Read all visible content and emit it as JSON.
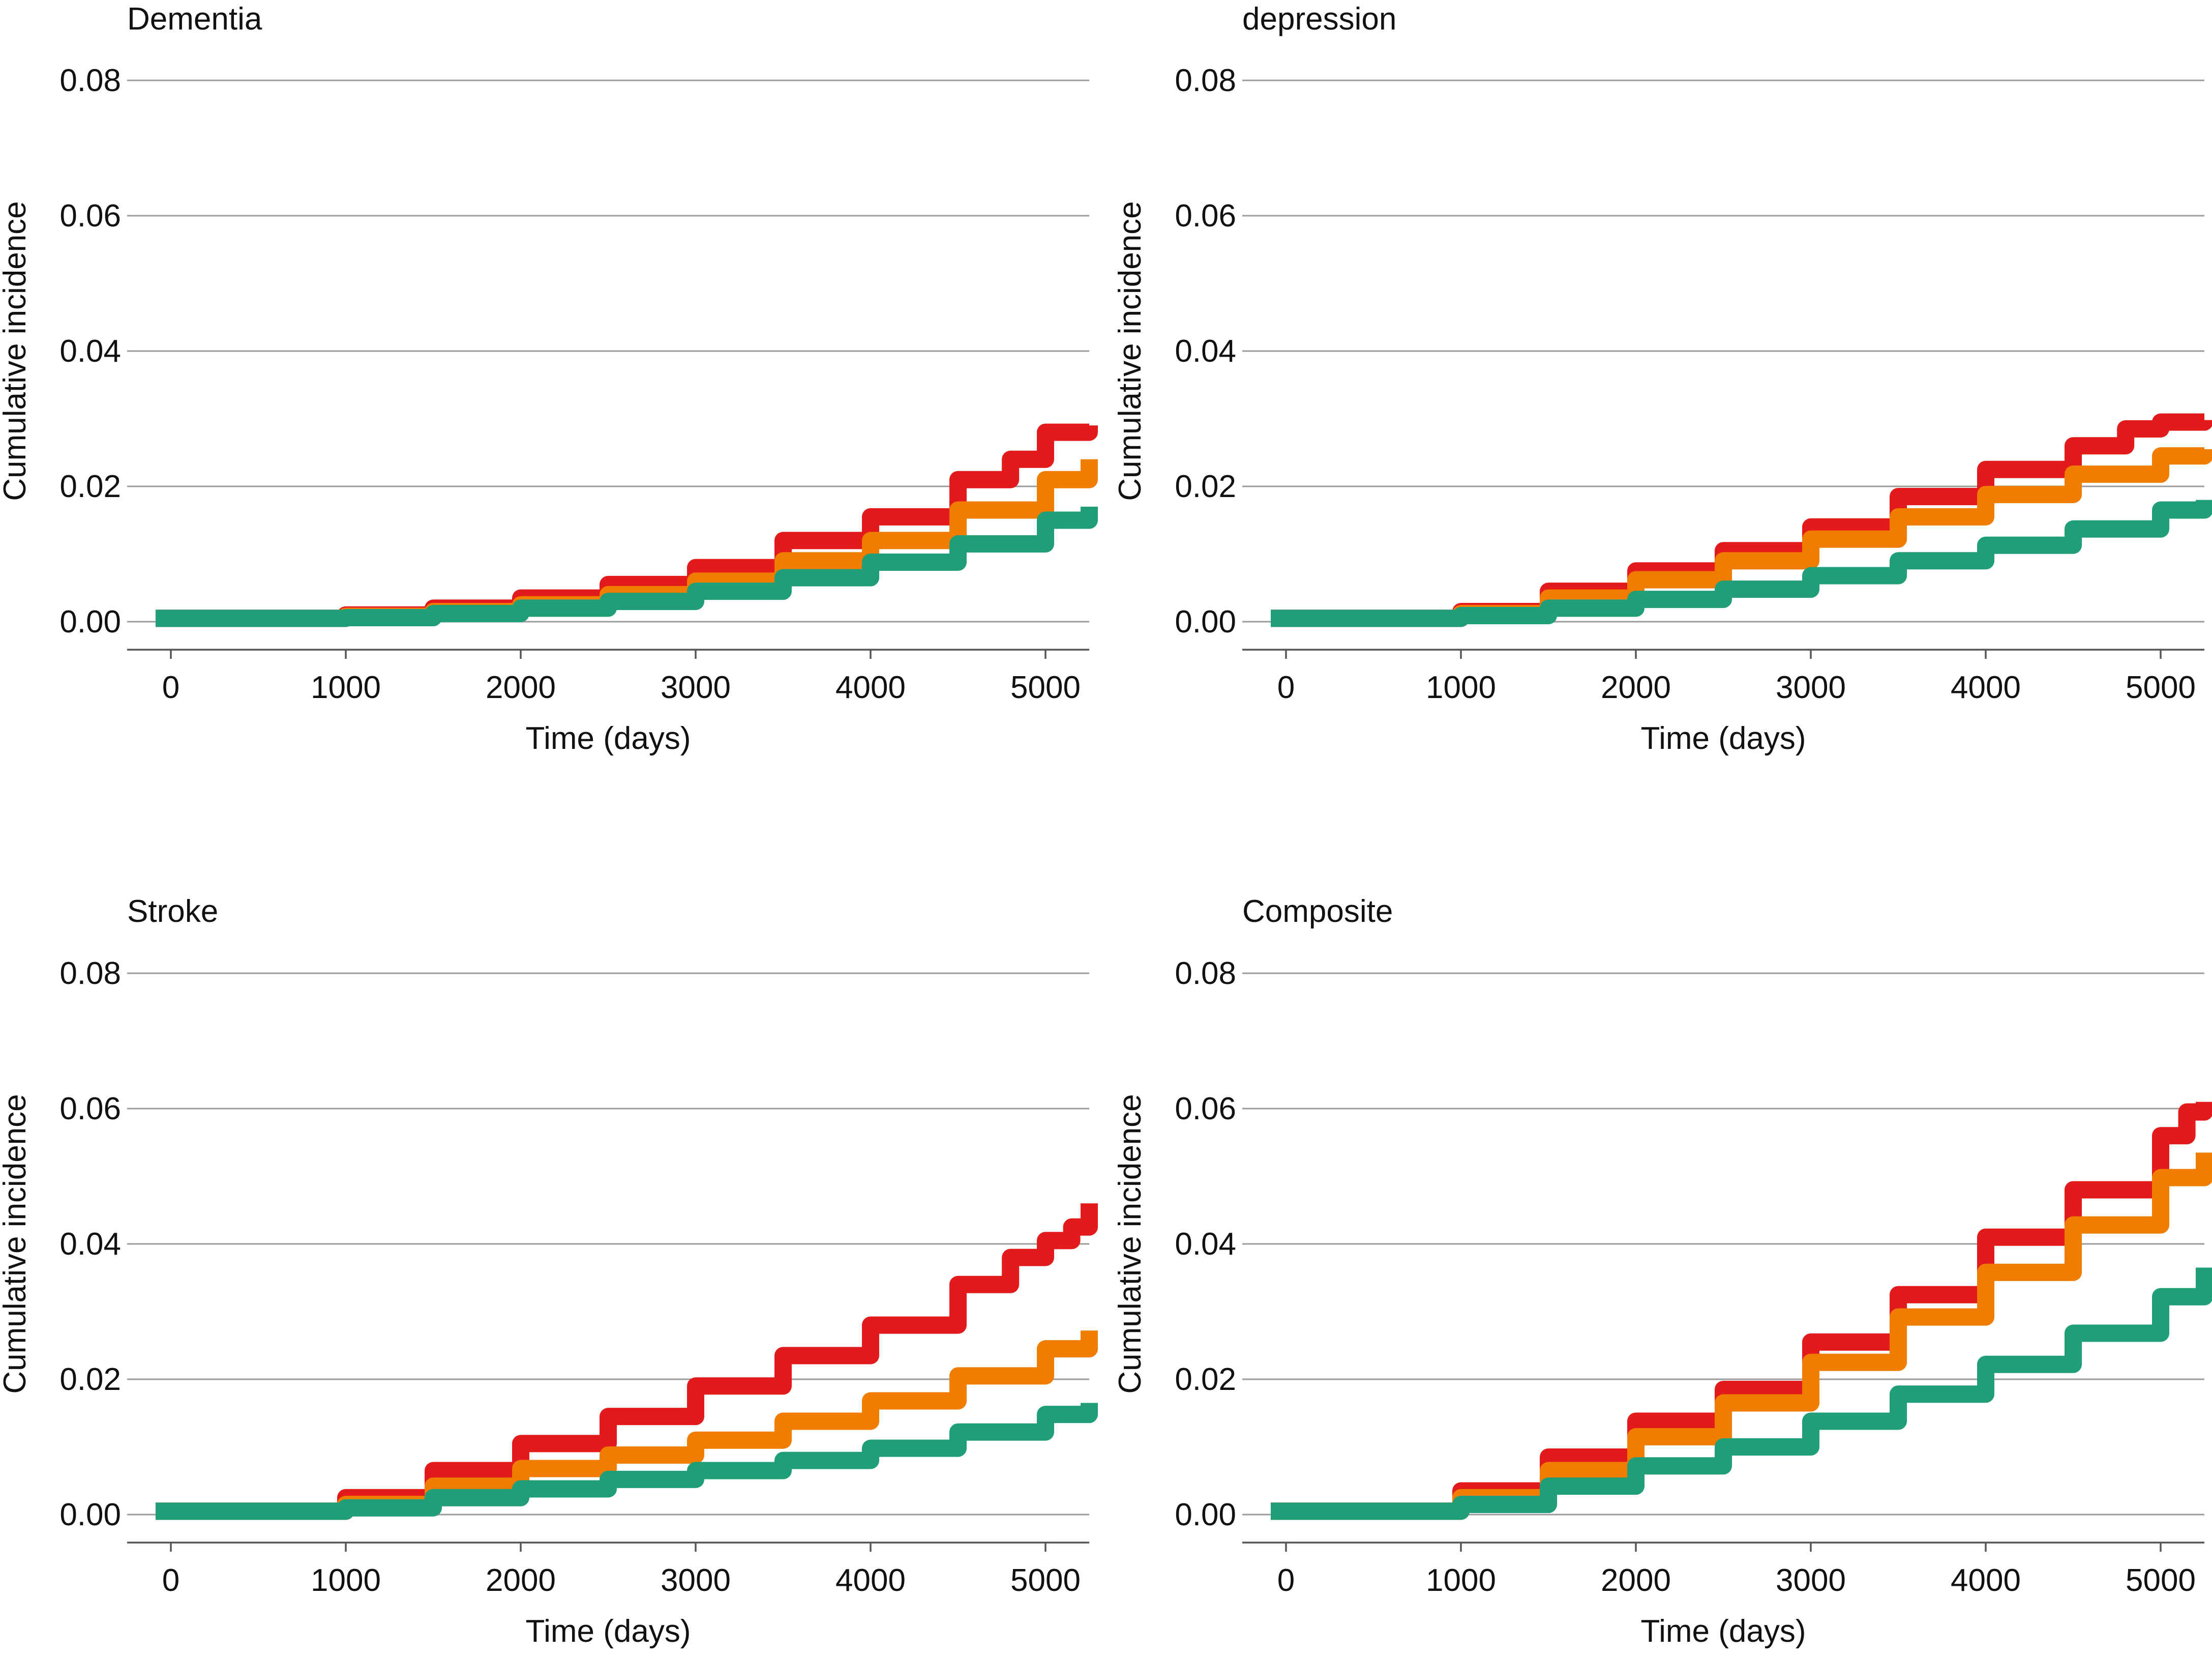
{
  "chart_data": [
    {
      "type": "line",
      "title": "Dementia",
      "xlabel": "Time (days)",
      "ylabel": "Cumulative incidence",
      "xlim": [
        -250,
        5250
      ],
      "ylim": [
        0,
        0.08
      ],
      "xticks": [
        0,
        1000,
        2000,
        3000,
        4000,
        5000
      ],
      "xtick_labels": [
        "0",
        "1000",
        "2000",
        "3000",
        "4000",
        "5000"
      ],
      "yticks": [
        0,
        0.02,
        0.04,
        0.06,
        0.08
      ],
      "ytick_labels": [
        "0.00",
        "0.02",
        "0.04",
        "0.06",
        "0.08"
      ],
      "grid": true,
      "series": [
        {
          "name": "red",
          "color": "#e31a1c",
          "x": [
            0,
            750,
            1000,
            1500,
            2000,
            2500,
            3000,
            3500,
            4000,
            4500,
            4800,
            5000,
            5250
          ],
          "values": [
            0.0005,
            0.0005,
            0.001,
            0.002,
            0.0035,
            0.0055,
            0.008,
            0.012,
            0.0155,
            0.021,
            0.024,
            0.028,
            0.029
          ]
        },
        {
          "name": "orange",
          "color": "#f07c00",
          "x": [
            0,
            750,
            1000,
            1500,
            2000,
            2500,
            3000,
            3500,
            4000,
            4500,
            5000,
            5250
          ],
          "values": [
            0.0005,
            0.0005,
            0.0008,
            0.0015,
            0.0025,
            0.004,
            0.006,
            0.009,
            0.012,
            0.0165,
            0.021,
            0.024
          ]
        },
        {
          "name": "green",
          "color": "#1f9e78",
          "x": [
            0,
            750,
            1000,
            1500,
            2000,
            2500,
            3000,
            3500,
            4000,
            4500,
            5000,
            5250
          ],
          "values": [
            0.0005,
            0.0005,
            0.0006,
            0.0012,
            0.002,
            0.003,
            0.0045,
            0.0065,
            0.0088,
            0.0115,
            0.015,
            0.017
          ]
        }
      ]
    },
    {
      "type": "line",
      "title": "depression",
      "xlabel": "Time (days)",
      "ylabel": "Cumulative incidence",
      "xlim": [
        -250,
        5250
      ],
      "ylim": [
        0,
        0.08
      ],
      "xticks": [
        0,
        1000,
        2000,
        3000,
        4000,
        5000
      ],
      "xtick_labels": [
        "0",
        "1000",
        "2000",
        "3000",
        "4000",
        "5000"
      ],
      "yticks": [
        0,
        0.02,
        0.04,
        0.06,
        0.08
      ],
      "ytick_labels": [
        "0.00",
        "0.02",
        "0.04",
        "0.06",
        "0.08"
      ],
      "grid": true,
      "series": [
        {
          "name": "red",
          "color": "#e31a1c",
          "x": [
            0,
            750,
            1000,
            1500,
            2000,
            2500,
            3000,
            3500,
            4000,
            4500,
            4800,
            5000,
            5250
          ],
          "values": [
            0.0005,
            0.0005,
            0.0015,
            0.0045,
            0.0075,
            0.0105,
            0.014,
            0.0185,
            0.0225,
            0.026,
            0.0285,
            0.0295,
            0.0298
          ]
        },
        {
          "name": "orange",
          "color": "#f07c00",
          "x": [
            0,
            750,
            1000,
            1500,
            2000,
            2500,
            3000,
            3500,
            4000,
            4500,
            5000,
            5250
          ],
          "values": [
            0.0005,
            0.0005,
            0.0012,
            0.0035,
            0.0062,
            0.009,
            0.0122,
            0.0155,
            0.0188,
            0.0218,
            0.0245,
            0.0255
          ]
        },
        {
          "name": "green",
          "color": "#1f9e78",
          "x": [
            0,
            750,
            1000,
            1500,
            2000,
            2500,
            3000,
            3500,
            4000,
            4500,
            5000,
            5250
          ],
          "values": [
            0.0005,
            0.0005,
            0.0009,
            0.002,
            0.0033,
            0.0048,
            0.0068,
            0.009,
            0.0113,
            0.0137,
            0.0165,
            0.018
          ]
        }
      ]
    },
    {
      "type": "line",
      "title": "Stroke",
      "xlabel": "Time (days)",
      "ylabel": "Cumulative incidence",
      "xlim": [
        -250,
        5250
      ],
      "ylim": [
        0,
        0.08
      ],
      "xticks": [
        0,
        1000,
        2000,
        3000,
        4000,
        5000
      ],
      "xtick_labels": [
        "0",
        "1000",
        "2000",
        "3000",
        "4000",
        "5000"
      ],
      "yticks": [
        0,
        0.02,
        0.04,
        0.06,
        0.08
      ],
      "ytick_labels": [
        "0.00",
        "0.02",
        "0.04",
        "0.06",
        "0.08"
      ],
      "grid": true,
      "series": [
        {
          "name": "red",
          "color": "#e31a1c",
          "x": [
            0,
            750,
            1000,
            1500,
            2000,
            2500,
            3000,
            3500,
            4000,
            4500,
            4800,
            5000,
            5150,
            5250
          ],
          "values": [
            0.0005,
            0.0005,
            0.0025,
            0.0065,
            0.0105,
            0.0145,
            0.019,
            0.0235,
            0.028,
            0.034,
            0.038,
            0.0405,
            0.0425,
            0.046
          ]
        },
        {
          "name": "orange",
          "color": "#f07c00",
          "x": [
            0,
            750,
            1000,
            1500,
            2000,
            2500,
            3000,
            3500,
            4000,
            4500,
            5000,
            5250
          ],
          "values": [
            0.0005,
            0.0005,
            0.0015,
            0.0042,
            0.0068,
            0.0088,
            0.011,
            0.0138,
            0.0168,
            0.0205,
            0.0245,
            0.0272
          ]
        },
        {
          "name": "green",
          "color": "#1f9e78",
          "x": [
            0,
            750,
            1000,
            1500,
            2000,
            2500,
            3000,
            3500,
            4000,
            4500,
            5000,
            5250
          ],
          "values": [
            0.0005,
            0.0005,
            0.001,
            0.0025,
            0.0038,
            0.0052,
            0.0065,
            0.008,
            0.0098,
            0.0122,
            0.0148,
            0.0165
          ]
        }
      ]
    },
    {
      "type": "line",
      "title": "Composite",
      "xlabel": "Time (days)",
      "ylabel": "Cumulative incidence",
      "xlim": [
        -250,
        5250
      ],
      "ylim": [
        0,
        0.08
      ],
      "xticks": [
        0,
        1000,
        2000,
        3000,
        4000,
        5000
      ],
      "xtick_labels": [
        "0",
        "1000",
        "2000",
        "3000",
        "4000",
        "5000"
      ],
      "yticks": [
        0,
        0.02,
        0.04,
        0.06,
        0.08
      ],
      "ytick_labels": [
        "0.00",
        "0.02",
        "0.04",
        "0.06",
        "0.08"
      ],
      "grid": true,
      "series": [
        {
          "name": "red",
          "color": "#e31a1c",
          "x": [
            0,
            750,
            1000,
            1500,
            2000,
            2500,
            3000,
            3500,
            4000,
            4500,
            5000,
            5150,
            5250
          ],
          "values": [
            0.0005,
            0.0005,
            0.0035,
            0.0085,
            0.0138,
            0.0185,
            0.0255,
            0.0325,
            0.041,
            0.048,
            0.056,
            0.0595,
            0.061
          ]
        },
        {
          "name": "orange",
          "color": "#f07c00",
          "x": [
            0,
            750,
            1000,
            1500,
            2000,
            2500,
            3000,
            3500,
            4000,
            4500,
            5000,
            5250
          ],
          "values": [
            0.0005,
            0.0005,
            0.0025,
            0.0065,
            0.0115,
            0.0165,
            0.0225,
            0.0292,
            0.0358,
            0.0428,
            0.0498,
            0.0535
          ]
        },
        {
          "name": "green",
          "color": "#1f9e78",
          "x": [
            0,
            750,
            1000,
            1500,
            2000,
            2500,
            3000,
            3500,
            4000,
            4500,
            5000,
            5250
          ],
          "values": [
            0.0005,
            0.0005,
            0.0015,
            0.0042,
            0.0072,
            0.01,
            0.0138,
            0.0178,
            0.0222,
            0.0268,
            0.0322,
            0.0365
          ]
        }
      ]
    }
  ]
}
